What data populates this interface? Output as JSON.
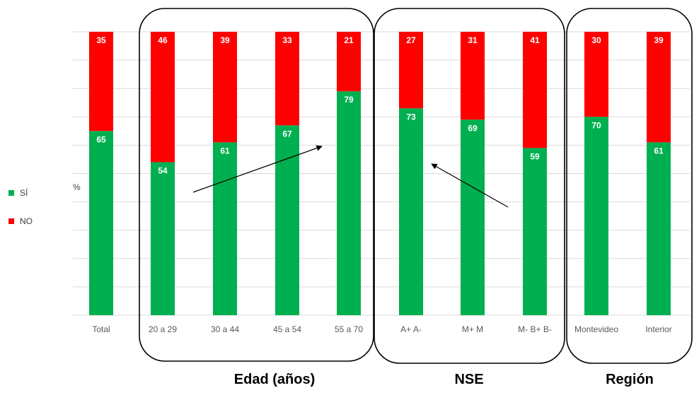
{
  "chart_data": {
    "type": "bar",
    "stacked": true,
    "categories": [
      "Total",
      "20 a 29",
      "30 a 44",
      "45 a 54",
      "55 a 70",
      "A+ A-",
      "M+ M",
      "M- B+ B-",
      "Montevideo",
      "Interior"
    ],
    "series": [
      {
        "name": "SÍ",
        "color": "#00B050",
        "values": [
          65,
          54,
          61,
          67,
          79,
          73,
          69,
          59,
          70,
          61
        ]
      },
      {
        "name": "NO",
        "color": "#FF0000",
        "values": [
          35,
          46,
          39,
          33,
          21,
          27,
          31,
          41,
          30,
          39
        ]
      }
    ],
    "ylabel": "%",
    "ylim": [
      0,
      100
    ],
    "grid": true,
    "legend_position": "left",
    "groups": [
      {
        "label": "Edad (años)",
        "categories": [
          "20 a 29",
          "30 a 44",
          "45 a 54",
          "55 a 70"
        ]
      },
      {
        "label": "NSE",
        "categories": [
          "A+ A-",
          "M+ M",
          "M- B+ B-"
        ]
      },
      {
        "label": "Región",
        "categories": [
          "Montevideo",
          "Interior"
        ]
      }
    ],
    "annotations": [
      {
        "type": "arrow",
        "description": "trend arrow rising across Edad (años) groups"
      },
      {
        "type": "arrow",
        "description": "trend arrow rising from M- B+ B- toward A+ A-"
      }
    ]
  }
}
